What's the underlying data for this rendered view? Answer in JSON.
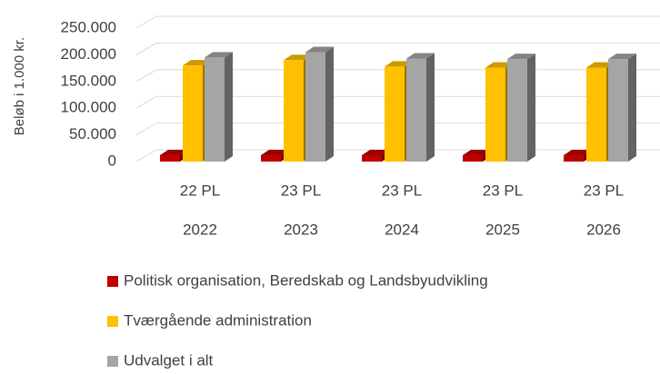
{
  "chart_data": {
    "type": "bar3d",
    "y_label": "Beløb i 1.000 kr.",
    "categories": [
      [
        "22 PL",
        "2022"
      ],
      [
        "23 PL",
        "2023"
      ],
      [
        "23 PL",
        "2024"
      ],
      [
        "23 PL",
        "2025"
      ],
      [
        "23 PL",
        "2026"
      ]
    ],
    "series": [
      {
        "name": "Politisk organisation, Beredskab og Landsbyudvikling",
        "color": "#c00000",
        "values": [
          12000,
          12000,
          12000,
          12000,
          12000
        ]
      },
      {
        "name": "Tværgående administration",
        "color": "#ffc000",
        "values": [
          180000,
          190000,
          178000,
          176000,
          176000
        ]
      },
      {
        "name": "Udvalget i alt",
        "color": "#a5a5a5",
        "values": [
          195000,
          205000,
          193000,
          192000,
          192000
        ]
      }
    ],
    "ylim": [
      0,
      250000
    ],
    "yticks": [
      0,
      {
        "value": 50000,
        "label": "50.000"
      },
      {
        "value": 100000,
        "label": "100.000"
      },
      {
        "value": 150000,
        "label": "150.000"
      },
      {
        "value": 200000,
        "label": "200.000"
      },
      {
        "value": 250000,
        "label": "250.000"
      }
    ],
    "grid": true,
    "legend": "bottom"
  }
}
